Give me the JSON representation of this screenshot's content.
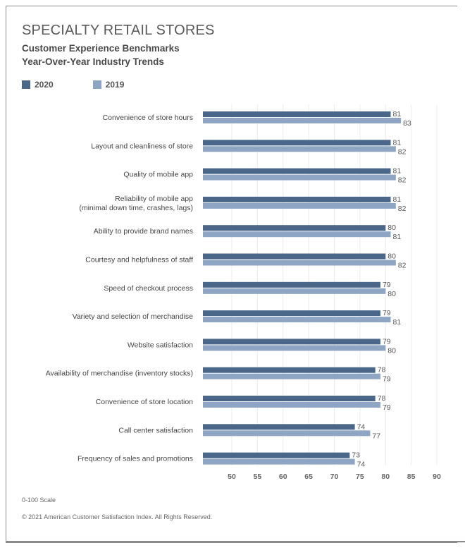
{
  "header": {
    "title": "SPECIALTY RETAIL STORES",
    "subtitle1": "Customer Experience Benchmarks",
    "subtitle2": "Year-Over-Year Industry Trends"
  },
  "legend": [
    {
      "label": "2020",
      "color": "#4a6688"
    },
    {
      "label": "2019",
      "color": "#8ea5c3"
    }
  ],
  "footer": {
    "scale_note": "0-100 Scale",
    "copyright": "© 2021 American Customer Satisfaction Index. All Rights Reserved."
  },
  "chart_data": {
    "type": "bar",
    "orientation": "horizontal",
    "title": "SPECIALTY RETAIL STORES",
    "subtitle": "Customer Experience Benchmarks — Year-Over-Year Industry Trends",
    "xlabel": "",
    "ylabel": "",
    "xlim": [
      44.4,
      92
    ],
    "xticks": [
      50,
      55,
      60,
      65,
      70,
      75,
      80,
      85,
      90
    ],
    "grid": true,
    "legend_position": "top-left",
    "categories": [
      [
        "Convenience of store hours"
      ],
      [
        "Layout and cleanliness of store"
      ],
      [
        "Quality of mobile app"
      ],
      [
        "Reliability of mobile app",
        "(minimal down time, crashes, lags)"
      ],
      [
        "Ability to provide brand names"
      ],
      [
        "Courtesy and helpfulness of staff"
      ],
      [
        "Speed of checkout process"
      ],
      [
        "Variety and selection of merchandise"
      ],
      [
        "Website satisfaction"
      ],
      [
        "Availability of merchandise (inventory stocks)"
      ],
      [
        "Convenience of store location"
      ],
      [
        "Call center satisfaction"
      ],
      [
        "Frequency of sales and promotions"
      ]
    ],
    "series": [
      {
        "name": "2020",
        "color": "#4a6688",
        "values": [
          81,
          81,
          81,
          81,
          80,
          80,
          79,
          79,
          79,
          78,
          78,
          74,
          73
        ]
      },
      {
        "name": "2019",
        "color": "#8ea5c3",
        "values": [
          83,
          82,
          82,
          82,
          81,
          82,
          80,
          81,
          80,
          79,
          79,
          77,
          74
        ]
      }
    ]
  }
}
